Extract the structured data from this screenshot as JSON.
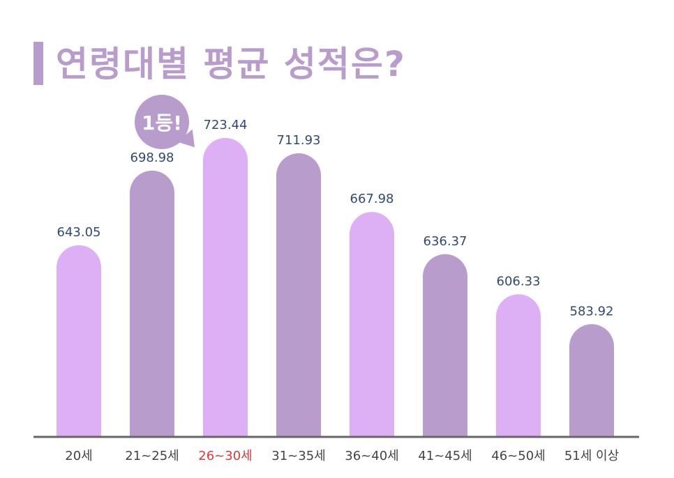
{
  "title": "연령대별 평균 성적은?",
  "badge_label": "1등!",
  "colors": {
    "light": "#ddb0f6",
    "dark": "#b89ccc",
    "label": "#2e4a74",
    "highlight": "#e03a3a",
    "axis": "#666666",
    "category": "#444444"
  },
  "chart_data": {
    "type": "bar",
    "categories": [
      "20세",
      "21~25세",
      "26~30세",
      "31~35세",
      "36~40세",
      "41~45세",
      "46~50세",
      "51세 이상"
    ],
    "values": [
      643.05,
      698.98,
      723.44,
      711.93,
      667.98,
      636.37,
      606.33,
      583.92
    ],
    "value_labels": [
      "643.05",
      "698.98",
      "723.44",
      "711.93",
      "667.98",
      "636.37",
      "606.33",
      "583.92"
    ],
    "highlight_index": 2,
    "bar_colors": [
      "light",
      "dark",
      "light",
      "dark",
      "light",
      "dark",
      "light",
      "dark"
    ]
  }
}
